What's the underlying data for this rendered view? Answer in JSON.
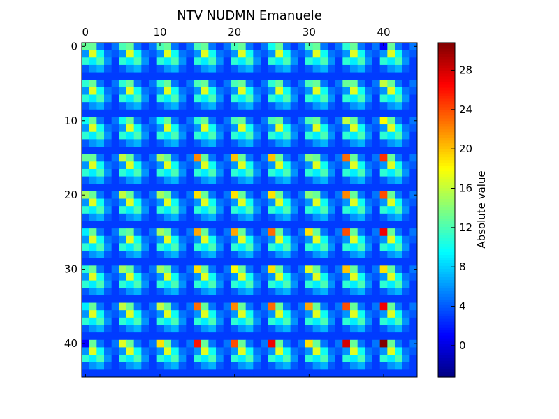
{
  "chart_data": {
    "type": "heatmap",
    "title": "NTV NUDMN Emanuele",
    "n_rows": 45,
    "n_cols": 45,
    "block_size": 5,
    "n_blocks": 9,
    "xticks": [
      0,
      10,
      20,
      30,
      40
    ],
    "yticks": [
      0,
      10,
      20,
      30,
      40
    ],
    "x_tick_position": "top",
    "background_value": 3.0,
    "block_pattern": {
      "description_rows": "offsets within each 5x5 block (row, col)",
      "cells": [
        [
          0,
          0,
          13
        ],
        [
          0,
          1,
          13
        ],
        [
          0,
          2,
          5
        ],
        [
          0,
          3,
          3
        ],
        [
          0,
          4,
          5
        ],
        [
          1,
          0,
          6
        ],
        [
          1,
          1,
          17
        ],
        [
          1,
          2,
          10
        ],
        [
          1,
          3,
          5
        ],
        [
          1,
          4,
          4
        ],
        [
          2,
          0,
          11
        ],
        [
          2,
          1,
          9
        ],
        [
          2,
          2,
          12
        ],
        [
          2,
          3,
          6
        ],
        [
          2,
          4,
          3
        ],
        [
          3,
          0,
          4
        ],
        [
          3,
          1,
          6
        ],
        [
          3,
          2,
          7
        ],
        [
          3,
          3,
          4
        ],
        [
          3,
          4,
          3
        ],
        [
          4,
          0,
          3
        ],
        [
          4,
          1,
          3
        ],
        [
          4,
          2,
          3
        ],
        [
          4,
          3,
          3
        ],
        [
          4,
          4,
          3
        ]
      ]
    },
    "corner_values": [
      [
        13,
        12,
        12,
        12,
        12,
        10,
        12,
        11,
        1
      ],
      [
        11,
        11,
        11,
        12,
        12,
        11,
        12,
        13,
        16
      ],
      [
        10,
        10,
        10,
        11,
        12,
        12,
        12,
        16,
        18
      ],
      [
        13,
        16,
        15,
        22,
        20,
        20,
        14,
        23,
        25
      ],
      [
        15,
        16,
        15,
        19,
        19,
        19,
        14,
        22,
        24
      ],
      [
        9,
        12,
        15,
        21,
        21,
        23,
        19,
        24,
        27
      ],
      [
        11,
        15,
        15,
        19,
        18,
        19,
        17,
        20,
        19
      ],
      [
        9,
        16,
        16,
        23,
        22,
        23,
        21,
        24,
        27
      ],
      [
        1,
        17,
        19,
        26,
        24,
        27,
        19,
        28,
        31
      ]
    ],
    "colorbar": {
      "label": "Absolute value",
      "vmin": -3.2,
      "vmax": 30.8,
      "ticks": [
        0,
        4,
        8,
        12,
        16,
        20,
        24,
        28
      ],
      "colormap": "jet"
    }
  }
}
